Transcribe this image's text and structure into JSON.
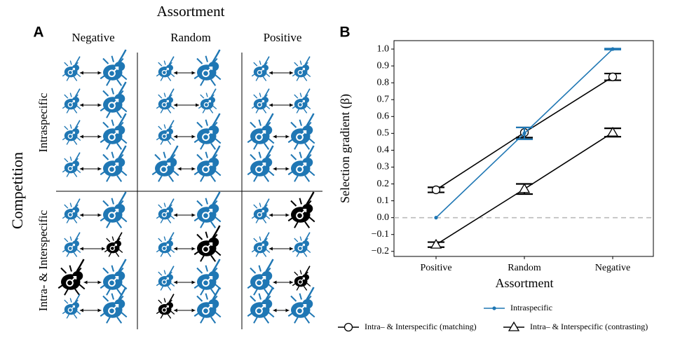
{
  "panel_a": {
    "label": "A",
    "title": "Assortment",
    "columns": [
      "Negative",
      "Random",
      "Positive"
    ],
    "row_title": "Competition",
    "rows": [
      "Intraspecific",
      "Intra- & Interspecific"
    ]
  },
  "chart_data": {
    "type": "line",
    "label": "B",
    "xlabel": "Assortment",
    "ylabel": "Selection gradient (β)",
    "categories": [
      "Positive",
      "Random",
      "Negative"
    ],
    "series": [
      {
        "name": "Intraspecific",
        "color": "#1f77b4",
        "marker": "dot",
        "values": [
          0,
          0.5,
          1.0
        ],
        "errors": [
          null,
          0.035,
          0.003
        ]
      },
      {
        "name": "Intra– & Interspecific (matching)",
        "color": "#000000",
        "marker": "circle",
        "values": [
          0.165,
          0.505,
          0.835
        ],
        "errors": [
          0.015,
          0.03,
          0.02
        ]
      },
      {
        "name": "Intra– & Interspecific (contrasting)",
        "color": "#000000",
        "marker": "triangle",
        "values": [
          -0.16,
          0.17,
          0.505
        ],
        "errors": [
          0.015,
          0.03,
          0.025
        ]
      }
    ],
    "ylim": [
      -0.23,
      1.05
    ],
    "yticks": [
      {
        "value": -0.2,
        "label": "−0.2"
      },
      {
        "value": -0.1,
        "label": "−0.1"
      },
      {
        "value": 0,
        "label": "0.0"
      },
      0.1,
      0.2,
      0.3,
      0.4,
      0.5,
      0.6,
      0.7,
      0.8,
      0.9,
      {
        "value": 1.0,
        "label": "1.0"
      }
    ],
    "reference_line": 0,
    "grid": false
  }
}
